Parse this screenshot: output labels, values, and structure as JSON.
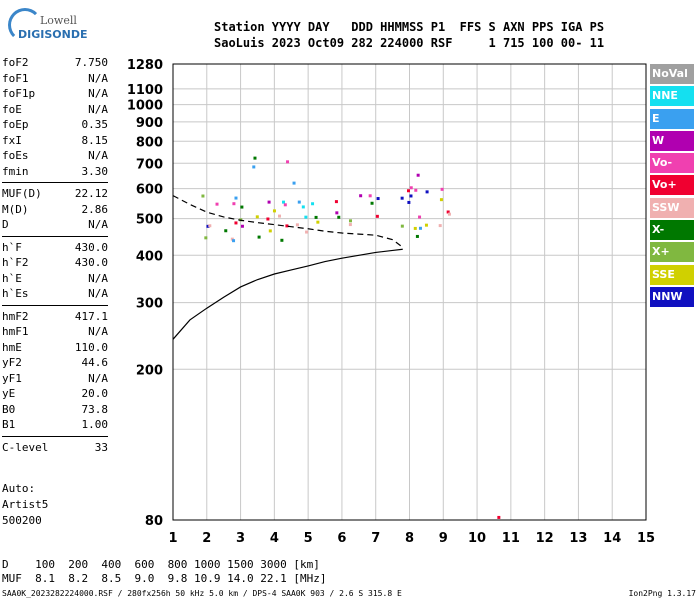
{
  "logo": {
    "top": "Lowell",
    "bottom": "DIGISONDE"
  },
  "header": {
    "line1": "Station YYYY DAY   DDD HHMMSS P1  FFS S AXN PPS IGA PS",
    "line2": "SaoLuis 2023 Oct09 282 224000 RSF     1 715 100 00- 11"
  },
  "params": {
    "group1": [
      {
        "name": "foF2",
        "value": "7.750"
      },
      {
        "name": "foF1",
        "value": "N/A"
      },
      {
        "name": "foF1p",
        "value": "N/A"
      },
      {
        "name": "foE",
        "value": "N/A"
      },
      {
        "name": "foEp",
        "value": "0.35"
      },
      {
        "name": "fxI",
        "value": "8.15"
      },
      {
        "name": "foEs",
        "value": "N/A"
      },
      {
        "name": "fmin",
        "value": "3.30"
      }
    ],
    "group2": [
      {
        "name": "MUF(D)",
        "value": "22.12"
      },
      {
        "name": "M(D)",
        "value": "2.86"
      },
      {
        "name": "D",
        "value": "N/A"
      }
    ],
    "group3": [
      {
        "name": "h`F",
        "value": "430.0"
      },
      {
        "name": "h`F2",
        "value": "430.0"
      },
      {
        "name": "h`E",
        "value": "N/A"
      },
      {
        "name": "h`Es",
        "value": "N/A"
      }
    ],
    "group4": [
      {
        "name": "hmF2",
        "value": "417.1"
      },
      {
        "name": "hmF1",
        "value": "N/A"
      },
      {
        "name": "hmE",
        "value": "110.0"
      },
      {
        "name": "yF2",
        "value": "44.6"
      },
      {
        "name": "yF1",
        "value": "N/A"
      },
      {
        "name": "yE",
        "value": "20.0"
      },
      {
        "name": "B0",
        "value": "73.8"
      },
      {
        "name": "B1",
        "value": "1.00"
      }
    ],
    "group5": [
      {
        "name": "C-level",
        "value": "33"
      }
    ]
  },
  "auto": {
    "line1": "Auto:",
    "line2": "Artist5",
    "line3": "500200"
  },
  "legend": [
    {
      "label": "NoVal",
      "color": "#a0a0a0"
    },
    {
      "label": "NNE",
      "color": "#14e0f0"
    },
    {
      "label": "E",
      "color": "#3aa0f0"
    },
    {
      "label": "W",
      "color": "#b000b0"
    },
    {
      "label": "Vo-",
      "color": "#f040b0"
    },
    {
      "label": "Vo+",
      "color": "#f00030"
    },
    {
      "label": "SSW",
      "color": "#f0b0b0"
    },
    {
      "label": "X-",
      "color": "#007800"
    },
    {
      "label": "X+",
      "color": "#80b840"
    },
    {
      "label": "SSE",
      "color": "#d0d000"
    },
    {
      "label": "NNW",
      "color": "#1010c0"
    }
  ],
  "bottom": {
    "dist": "D    100  200  400  600  800 1000 1500 3000 [km]",
    "muf": "MUF  8.1  8.2  8.5  9.0  9.8 10.9 14.0 22.1 [MHz]"
  },
  "footer": "SAA0K_2023282224000.RSF / 280fx256h 50 kHz 5.0 km / DPS-4 SAA0K 903 / 2.6 S 315.8 E",
  "version": "Ion2Png 1.3.17",
  "chart_data": {
    "type": "scatter",
    "xlim": [
      1,
      15
    ],
    "ylim": [
      80,
      1280
    ],
    "x_ticks": [
      1,
      2,
      3,
      4,
      5,
      6,
      7,
      8,
      9,
      10,
      11,
      12,
      13,
      14,
      15
    ],
    "y_ticks": [
      80,
      200,
      300,
      400,
      500,
      600,
      700,
      800,
      900,
      1000,
      1100,
      1280
    ],
    "grid": true,
    "y_scale": "log",
    "profile_line": [
      [
        1.0,
        240
      ],
      [
        1.5,
        270
      ],
      [
        2.0,
        290
      ],
      [
        2.5,
        310
      ],
      [
        3.0,
        330
      ],
      [
        3.5,
        345
      ],
      [
        4.0,
        357
      ],
      [
        4.5,
        366
      ],
      [
        5.0,
        375
      ],
      [
        5.5,
        385
      ],
      [
        6.0,
        393
      ],
      [
        6.5,
        400
      ],
      [
        7.0,
        407
      ],
      [
        7.5,
        412
      ],
      [
        7.8,
        415
      ]
    ],
    "trace_dashed": [
      [
        1.0,
        575
      ],
      [
        1.5,
        545
      ],
      [
        2.0,
        520
      ],
      [
        2.5,
        505
      ],
      [
        3.0,
        495
      ],
      [
        3.5,
        488
      ],
      [
        4.0,
        482
      ],
      [
        4.5,
        476
      ],
      [
        5.0,
        470
      ],
      [
        5.5,
        463
      ],
      [
        6.0,
        458
      ],
      [
        6.5,
        455
      ],
      [
        7.0,
        452
      ],
      [
        7.5,
        440
      ],
      [
        7.8,
        420
      ]
    ],
    "echo_regions": [
      {
        "x": [
          1.6,
          3.0
        ],
        "y": [
          400,
          600
        ]
      },
      {
        "x": [
          3.0,
          5.0
        ],
        "y": [
          420,
          610
        ]
      },
      {
        "x": [
          5.0,
          6.0
        ],
        "y": [
          430,
          560
        ]
      },
      {
        "x": [
          6.2,
          7.2
        ],
        "y": [
          440,
          600
        ]
      },
      {
        "x": [
          7.5,
          9.5
        ],
        "y": [
          450,
          660
        ]
      },
      {
        "x": [
          2.8,
          3.6
        ],
        "y": [
          650,
          800
        ]
      },
      {
        "x": [
          4.0,
          4.7
        ],
        "y": [
          620,
          820
        ]
      }
    ]
  }
}
